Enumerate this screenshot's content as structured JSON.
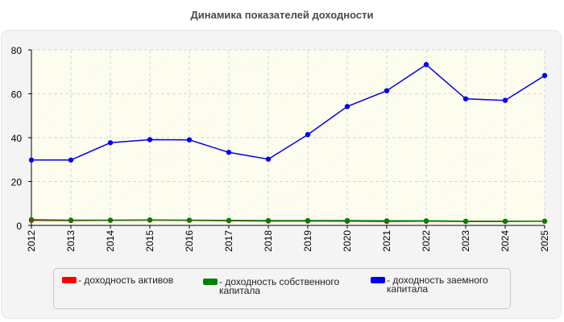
{
  "chart_data": {
    "type": "line",
    "title": "Динамика показателей доходности",
    "xlabel": "",
    "ylabel": "",
    "categories": [
      "2012",
      "2013",
      "2014",
      "2015",
      "2016",
      "2017",
      "2018",
      "2019",
      "2020",
      "2021",
      "2022",
      "2023",
      "2024",
      "2025"
    ],
    "ylim": [
      0,
      80
    ],
    "yticks": [
      0,
      20,
      40,
      60,
      80
    ],
    "grid": true,
    "legend_position": "bottom",
    "series": [
      {
        "name": "- доходность активов",
        "color": "#ff0000",
        "values": [
          2.3,
          2.2,
          2.3,
          2.4,
          2.3,
          2.1,
          2.0,
          2.0,
          1.9,
          1.8,
          1.9,
          1.8,
          1.8,
          1.9
        ]
      },
      {
        "name": "- доходность собственного капитала",
        "color": "#008000",
        "values": [
          2.6,
          2.4,
          2.4,
          2.5,
          2.4,
          2.3,
          2.2,
          2.2,
          2.2,
          2.1,
          2.1,
          1.9,
          1.9,
          1.9
        ]
      },
      {
        "name": "- доходность заемного капитала",
        "color": "#0000ee",
        "values": [
          29.8,
          29.8,
          37.7,
          39.1,
          39.0,
          33.3,
          30.2,
          41.4,
          54.2,
          61.4,
          73.3,
          57.7,
          57.0,
          68.3
        ]
      }
    ]
  }
}
